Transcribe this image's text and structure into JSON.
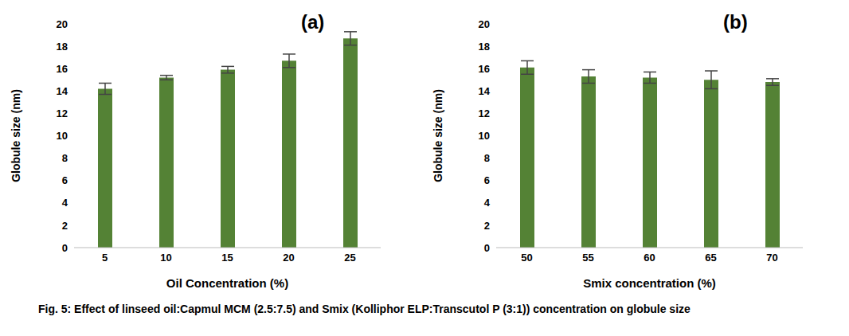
{
  "caption": "Fig. 5: Effect of linseed oil:Capmul MCM (2.5:7.5) and Smix (Kolliphor ELP:Transcutol P (3:1)) concentration on globule size",
  "chart_data": [
    {
      "type": "bar",
      "title": "(a)",
      "x_label": "Oil Concentration (%)",
      "y_label": "Globule size (nm)",
      "categories": [
        5,
        10,
        15,
        20,
        25
      ],
      "values": [
        14.2,
        15.2,
        15.9,
        16.7,
        18.7
      ],
      "errors": [
        0.5,
        0.2,
        0.3,
        0.6,
        0.6
      ],
      "color": "#548235",
      "ylim": [
        0,
        20
      ],
      "yticks": [
        0,
        2,
        4,
        6,
        8,
        10,
        12,
        14,
        16,
        18,
        20
      ],
      "grid": false
    },
    {
      "type": "bar",
      "title": "(b)",
      "x_label": "Smix concentration (%)",
      "y_label": "Globule size (nm)",
      "categories": [
        50,
        55,
        60,
        65,
        70
      ],
      "values": [
        16.1,
        15.3,
        15.2,
        15.0,
        14.8
      ],
      "errors": [
        0.6,
        0.6,
        0.5,
        0.8,
        0.3
      ],
      "color": "#548235",
      "ylim": [
        0,
        20
      ],
      "yticks": [
        0,
        2,
        4,
        6,
        8,
        10,
        12,
        14,
        16,
        18,
        20
      ],
      "grid": false
    }
  ]
}
